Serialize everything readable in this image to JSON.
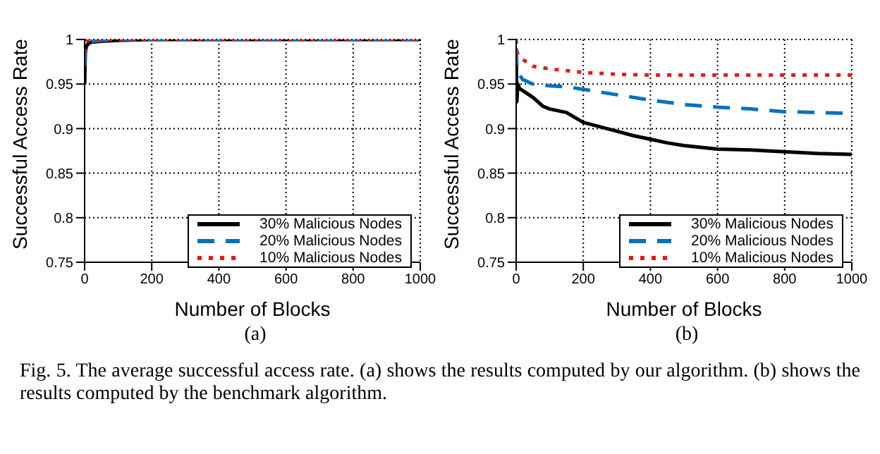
{
  "chart_data": [
    {
      "type": "line",
      "xlabel": "Number of Blocks",
      "ylabel": "Successful Access Rate",
      "annotations": [
        "(a)"
      ],
      "xlim": [
        0,
        1000
      ],
      "xticks": [
        0,
        200,
        400,
        600,
        800,
        1000
      ],
      "ylim": [
        0.75,
        1
      ],
      "yticks": [
        0.75,
        0.8,
        0.85,
        0.9,
        0.95,
        1
      ],
      "grid": true,
      "legend": "bottom right",
      "marker": "none",
      "series": [
        {
          "name": "30% Malicious Nodes",
          "color": "#000000",
          "line_style": "solid",
          "x": [
            0,
            2,
            5,
            10,
            20,
            50,
            100,
            200,
            400,
            600,
            800,
            1000
          ],
          "values": [
            0.95,
            0.985,
            0.992,
            0.995,
            0.997,
            0.998,
            0.999,
            1,
            1,
            1,
            1,
            1
          ]
        },
        {
          "name": "20% Malicious Nodes",
          "color": "#0072bd",
          "line_style": "dashed",
          "x": [
            0,
            2,
            5,
            10,
            20,
            50,
            100,
            200,
            400,
            600,
            800,
            1000
          ],
          "values": [
            0.97,
            0.99,
            0.995,
            0.997,
            0.998,
            0.999,
            1,
            1,
            1,
            1,
            1,
            1
          ]
        },
        {
          "name": "10% Malicious Nodes",
          "color": "#e41a1c",
          "line_style": "dotted",
          "x": [
            0,
            2,
            5,
            10,
            20,
            50,
            100,
            200,
            400,
            600,
            800,
            1000
          ],
          "values": [
            0.985,
            0.995,
            0.998,
            0.999,
            1,
            1,
            1,
            1,
            1,
            1,
            1,
            1
          ]
        }
      ]
    },
    {
      "type": "line",
      "xlabel": "Number of Blocks",
      "ylabel": "Successful Access Rate",
      "annotations": [
        "(b)",
        "Fig. 5.  The average successful access rate. (a) shows the results computed by our algorithm. (b) shows the results computed by the benchmark algorithm."
      ],
      "xlim": [
        0,
        1000
      ],
      "xticks": [
        0,
        200,
        400,
        600,
        800,
        1000
      ],
      "ylim": [
        0.75,
        1
      ],
      "yticks": [
        0.75,
        0.8,
        0.85,
        0.9,
        0.95,
        1
      ],
      "grid": true,
      "legend": "bottom right",
      "marker": "none",
      "series": [
        {
          "name": "30% Malicious Nodes",
          "color": "#000000",
          "line_style": "solid",
          "x": [
            0,
            2,
            5,
            10,
            30,
            50,
            80,
            100,
            150,
            200,
            250,
            300,
            350,
            400,
            450,
            500,
            600,
            700,
            800,
            900,
            1000
          ],
          "values": [
            0.99,
            0.93,
            0.95,
            0.945,
            0.94,
            0.935,
            0.925,
            0.922,
            0.918,
            0.907,
            0.902,
            0.897,
            0.892,
            0.888,
            0.884,
            0.881,
            0.877,
            0.876,
            0.874,
            0.872,
            0.871
          ]
        },
        {
          "name": "20% Malicious Nodes",
          "color": "#0072bd",
          "line_style": "dashed",
          "x": [
            0,
            3,
            10,
            20,
            50,
            100,
            150,
            200,
            300,
            400,
            500,
            600,
            700,
            800,
            900,
            1000
          ],
          "values": [
            0.99,
            0.965,
            0.96,
            0.955,
            0.95,
            0.948,
            0.947,
            0.944,
            0.938,
            0.932,
            0.927,
            0.924,
            0.922,
            0.919,
            0.918,
            0.917
          ]
        },
        {
          "name": "10% Malicious Nodes",
          "color": "#e41a1c",
          "line_style": "dotted",
          "x": [
            0,
            3,
            10,
            30,
            50,
            100,
            200,
            300,
            400,
            600,
            800,
            1000
          ],
          "values": [
            1,
            0.985,
            0.98,
            0.975,
            0.97,
            0.967,
            0.963,
            0.961,
            0.96,
            0.96,
            0.96,
            0.96
          ]
        }
      ]
    }
  ]
}
